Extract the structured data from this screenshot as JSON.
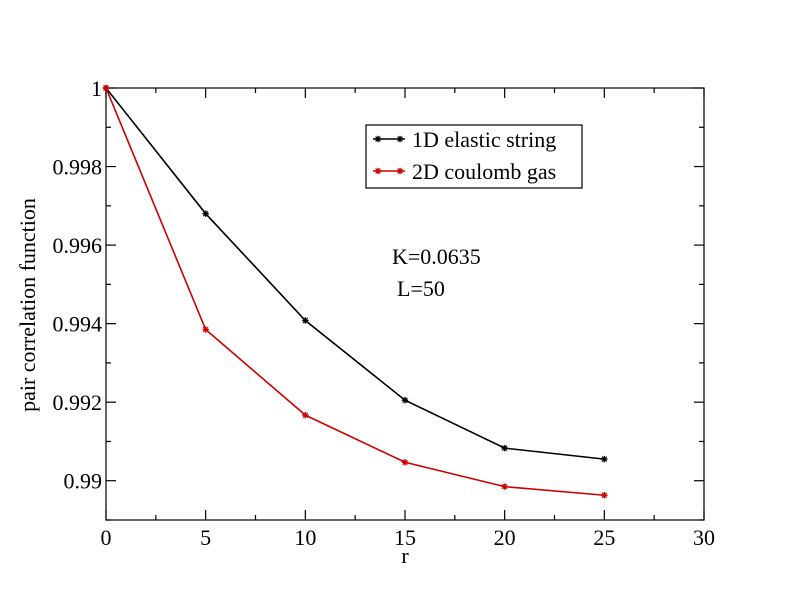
{
  "chart_data": {
    "type": "line",
    "title": "",
    "xlabel": "r",
    "ylabel": "pair correlation function",
    "xlim": [
      0,
      30
    ],
    "ylim": [
      0.989,
      1.0
    ],
    "xticks": [
      0,
      5,
      10,
      15,
      20,
      25,
      30
    ],
    "xtick_labels": [
      "0",
      "5",
      "10",
      "15",
      "20",
      "25",
      "30"
    ],
    "yticks": [
      0.99,
      0.992,
      0.994,
      0.996,
      0.998,
      1.0
    ],
    "ytick_labels": [
      "0.99",
      "0.992",
      "0.994",
      "0.996",
      "0.998",
      "1"
    ],
    "grid": false,
    "legend_position": "top-right",
    "x": [
      0,
      5,
      10,
      15,
      20,
      25
    ],
    "series": [
      {
        "name": "1D elastic string",
        "color": "#000000",
        "marker": "star",
        "values": [
          1.0,
          0.9968,
          0.99408,
          0.99205,
          0.99083,
          0.99055
        ]
      },
      {
        "name": "2D coulomb gas",
        "color": "#cc0000",
        "marker": "star",
        "values": [
          1.0,
          0.99385,
          0.99167,
          0.99047,
          0.98985,
          0.98963
        ]
      }
    ],
    "annotations": [
      "K=0.0635",
      "L=50"
    ]
  }
}
